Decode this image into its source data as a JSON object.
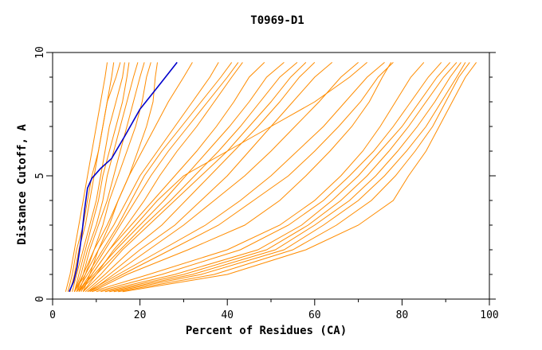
{
  "chart_data": {
    "type": "line",
    "title": "T0969-D1",
    "xlabel": "Percent of Residues (CA)",
    "ylabel": "Distance Cutoff, A",
    "xlim": [
      0,
      100
    ],
    "ylim": [
      0,
      10
    ],
    "xticks": [
      0,
      20,
      40,
      60,
      80,
      100
    ],
    "yticks": [
      0,
      5,
      10
    ],
    "grid": false,
    "legend": "none",
    "colors": {
      "highlight": "#0000cc",
      "others": "#ff8c00"
    },
    "highlight_series": {
      "x": [
        3.8,
        4.8,
        5.6,
        6.2,
        6.8,
        7.3,
        8.0,
        9.0,
        11.0,
        13.5,
        16.5,
        20.0,
        24.5,
        28.5
      ],
      "y": [
        0.3,
        0.7,
        1.3,
        2.0,
        2.8,
        3.6,
        4.5,
        4.9,
        5.3,
        5.7,
        6.6,
        7.7,
        8.7,
        9.6
      ]
    },
    "series_y": [
      0.3,
      1.0,
      2.0,
      3.0,
      4.0,
      5.0,
      6.0,
      7.0,
      8.0,
      9.0,
      9.6
    ],
    "series_x": [
      [
        3.0,
        4.0,
        5.0,
        6.0,
        7.0,
        8.0,
        9.0,
        10.0,
        11.0,
        12.0,
        12.5
      ],
      [
        3.5,
        4.5,
        5.5,
        7.0,
        8.0,
        9.0,
        10.5,
        11.5,
        12.5,
        13.5,
        14.0
      ],
      [
        4.0,
        5.0,
        6.0,
        7.5,
        8.5,
        9.5,
        10.5,
        11.5,
        12.5,
        14.5,
        15.5
      ],
      [
        4.5,
        5.5,
        7.0,
        8.5,
        10.0,
        11.0,
        12.0,
        13.0,
        14.5,
        16.0,
        16.5
      ],
      [
        5.0,
        6.0,
        7.5,
        9.0,
        10.5,
        11.5,
        13.0,
        14.5,
        16.0,
        17.0,
        17.5
      ],
      [
        5.0,
        6.5,
        8.0,
        10.0,
        11.5,
        12.5,
        14.0,
        15.5,
        17.0,
        18.5,
        19.5
      ],
      [
        5.5,
        7.0,
        8.5,
        10.5,
        12.5,
        14.0,
        15.5,
        17.0,
        18.5,
        20.0,
        21.0
      ],
      [
        6.0,
        7.5,
        9.5,
        11.5,
        13.0,
        15.0,
        17.0,
        19.0,
        20.5,
        21.5,
        22.5
      ],
      [
        7.0,
        8.5,
        10.5,
        13.0,
        15.0,
        17.5,
        19.5,
        21.5,
        23.0,
        23.5,
        24.0
      ],
      [
        5.0,
        7.0,
        9.5,
        12.5,
        15.0,
        17.5,
        20.5,
        23.5,
        26.5,
        30.0,
        32.0
      ],
      [
        5.0,
        7.5,
        10.5,
        14.0,
        17.0,
        20.0,
        24.0,
        28.0,
        32.0,
        36.0,
        38.0
      ],
      [
        5.5,
        8.0,
        11.5,
        15.0,
        18.0,
        21.0,
        25.0,
        29.5,
        34.0,
        38.5,
        41.0
      ],
      [
        6.0,
        8.5,
        12.0,
        15.5,
        19.0,
        22.5,
        26.5,
        31.0,
        35.5,
        40.0,
        42.5
      ],
      [
        6.5,
        9.0,
        13.0,
        17.0,
        21.0,
        24.5,
        28.5,
        33.0,
        37.0,
        41.0,
        43.5
      ],
      [
        6.0,
        9.0,
        13.0,
        18.0,
        23.0,
        28.0,
        33.0,
        37.5,
        41.5,
        45.0,
        48.5
      ],
      [
        5.5,
        9.5,
        14.5,
        20.0,
        25.5,
        30.5,
        35.5,
        40.5,
        45.0,
        49.0,
        53.0
      ],
      [
        6.0,
        10.0,
        15.5,
        21.0,
        27.0,
        32.5,
        38.0,
        43.0,
        47.5,
        52.0,
        56.0
      ],
      [
        7.0,
        11.0,
        16.0,
        22.0,
        28.0,
        34.0,
        40.0,
        45.0,
        50.0,
        54.5,
        58.0
      ],
      [
        7.5,
        12.0,
        18.0,
        25.0,
        30.5,
        36.0,
        41.5,
        47.0,
        52.0,
        56.5,
        60.0
      ],
      [
        8.0,
        13.0,
        20.0,
        28.0,
        34.0,
        40.0,
        45.0,
        50.0,
        55.0,
        60.0,
        64.0
      ],
      [
        8.5,
        14.0,
        22.0,
        30.0,
        37.0,
        44.0,
        50.0,
        55.5,
        61.0,
        66.0,
        70.0
      ],
      [
        8.0,
        15.0,
        25.0,
        35.0,
        43.0,
        50.0,
        56.0,
        62.0,
        67.0,
        72.0,
        76.0
      ],
      [
        8.5,
        16.0,
        27.0,
        38.0,
        46.0,
        54.0,
        60.0,
        65.5,
        70.5,
        74.5,
        78.0
      ],
      [
        9.0,
        17.0,
        31.0,
        44.0,
        52.0,
        58.0,
        63.5,
        68.5,
        72.5,
        75.5,
        77.5
      ],
      [
        9.0,
        22.0,
        40.0,
        52.0,
        60.0,
        66.0,
        71.0,
        75.0,
        78.5,
        82.0,
        85.0
      ],
      [
        10.0,
        25.0,
        43.0,
        54.0,
        62.0,
        68.0,
        73.5,
        78.0,
        82.0,
        86.0,
        89.0
      ],
      [
        11.0,
        28.0,
        47.0,
        57.0,
        64.0,
        70.0,
        75.0,
        80.0,
        84.0,
        88.0,
        91.0
      ],
      [
        12.0,
        30.0,
        49.0,
        58.5,
        66.0,
        72.0,
        77.0,
        81.5,
        85.5,
        89.5,
        92.5
      ],
      [
        13.0,
        32.0,
        51.0,
        60.0,
        68.0,
        74.0,
        79.0,
        83.5,
        87.5,
        91.0,
        93.5
      ],
      [
        14.0,
        34.0,
        53.0,
        62.0,
        70.0,
        76.0,
        81.0,
        85.5,
        89.0,
        92.5,
        94.5
      ],
      [
        15.0,
        37.0,
        55.0,
        65.0,
        73.0,
        78.5,
        83.0,
        87.0,
        90.0,
        93.0,
        95.5
      ],
      [
        16.0,
        40.0,
        58.0,
        70.0,
        78.0,
        81.5,
        85.5,
        88.5,
        91.5,
        94.5,
        97.0
      ],
      [
        7.0,
        10.0,
        14.0,
        19.0,
        24.0,
        30.0,
        40.0,
        50.0,
        60.0,
        68.0,
        72.0
      ]
    ]
  }
}
